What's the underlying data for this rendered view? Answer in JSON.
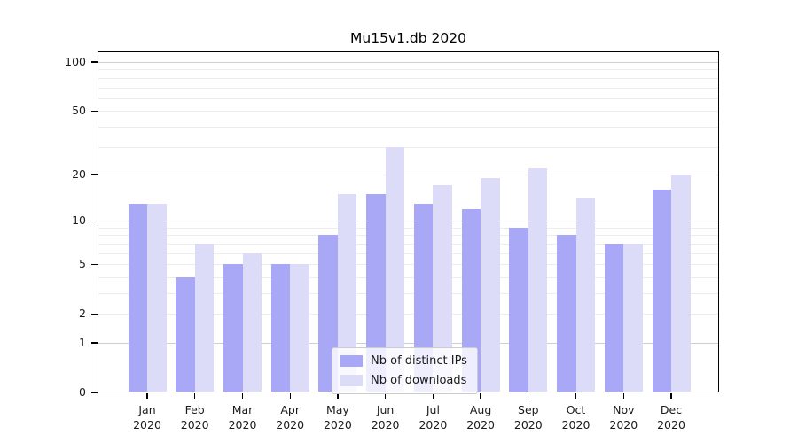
{
  "figure": {
    "background": "#ffffff"
  },
  "chart_data": {
    "type": "bar",
    "title": "Mu15v1.db 2020",
    "year_label": "2020",
    "categories": [
      "Jan 2020",
      "Feb 2020",
      "Mar 2020",
      "Apr 2020",
      "May 2020",
      "Jun 2020",
      "Jul 2020",
      "Aug 2020",
      "Sep 2020",
      "Oct 2020",
      "Nov 2020",
      "Dec 2020"
    ],
    "month_labels": [
      "Jan",
      "Feb",
      "Mar",
      "Apr",
      "May",
      "Jun",
      "Jul",
      "Aug",
      "Sep",
      "Oct",
      "Nov",
      "Dec"
    ],
    "series": [
      {
        "name": "Nb of distinct IPs",
        "color": "#a8a8f7",
        "values": [
          13,
          4,
          5,
          5,
          8,
          15,
          13,
          12,
          9,
          8,
          7,
          16
        ]
      },
      {
        "name": "Nb of downloads",
        "color": "#dcdcf9",
        "values": [
          13,
          7,
          6,
          5,
          15,
          30,
          17,
          19,
          22,
          14,
          7,
          20
        ]
      }
    ],
    "xlabel": "",
    "ylabel": "",
    "y_scale": "log1p",
    "ylim": [
      0,
      116
    ],
    "y_ticks": [
      0,
      1,
      2,
      5,
      10,
      20,
      50,
      100
    ],
    "y_major_gridlines": [
      1,
      10,
      100
    ],
    "y_minor_gridlines": [
      2,
      3,
      4,
      5,
      6,
      7,
      8,
      9,
      20,
      30,
      40,
      50,
      60,
      70,
      80,
      90
    ],
    "grid": true,
    "legend_position": "inside lower center"
  },
  "colors": {
    "bar_distinct_ips": "#a8a8f7",
    "bar_downloads": "#dcdcf9",
    "axis": "#000000",
    "grid_major": "#cfcfcf",
    "grid_minor": "#ececec",
    "tick_text": "#1a1a1a",
    "legend_border": "#cccccc"
  }
}
